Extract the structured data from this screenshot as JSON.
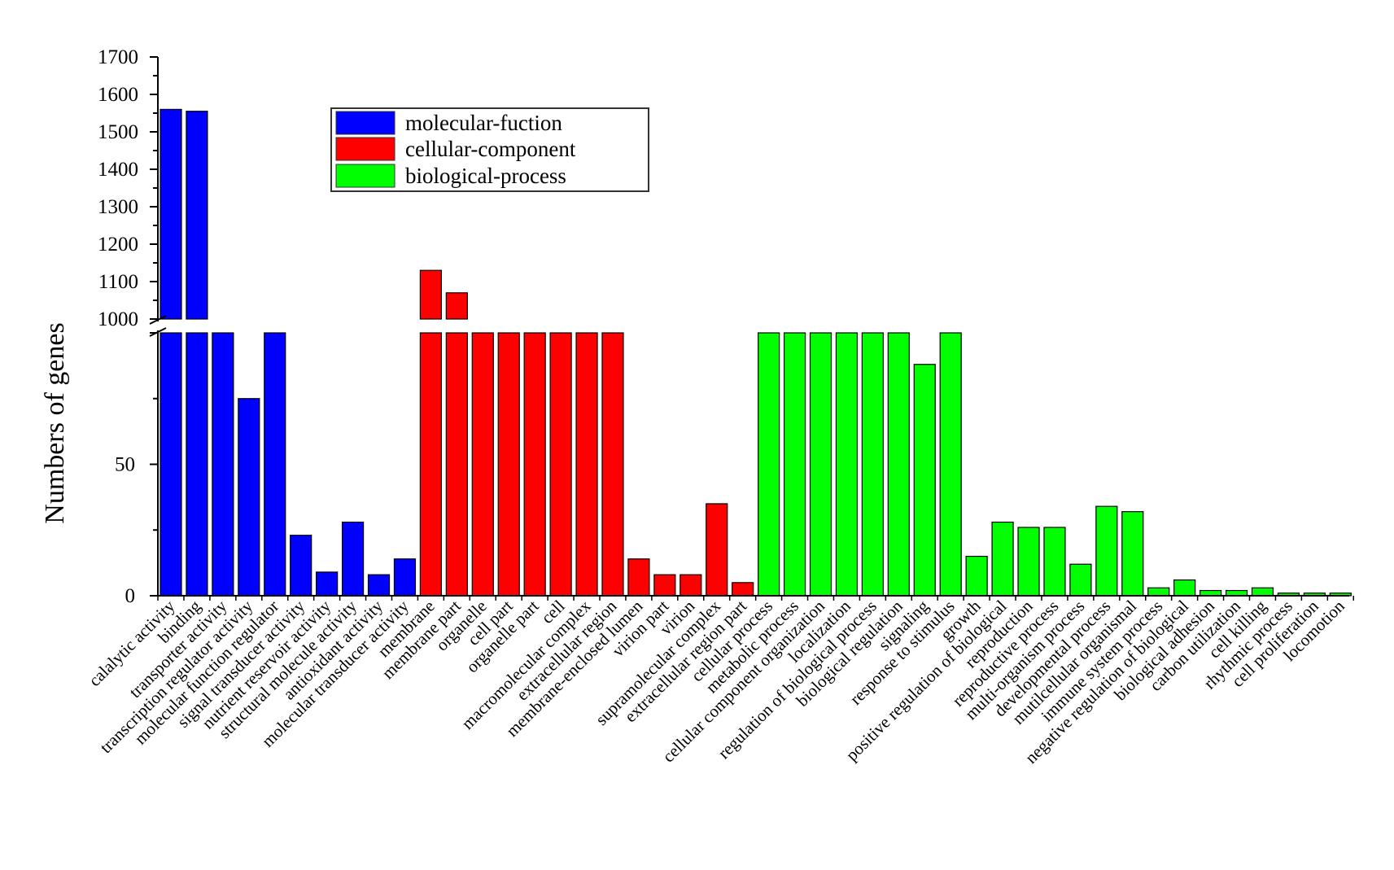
{
  "chart_data": {
    "type": "bar",
    "title": "",
    "xlabel": "",
    "ylabel": "Numbers of genes",
    "axis_break": true,
    "lower_range": [
      0,
      100
    ],
    "upper_range": [
      1000,
      1700
    ],
    "lower_ticks": [
      0,
      50
    ],
    "upper_ticks": [
      1000,
      1100,
      1200,
      1300,
      1400,
      1500,
      1600,
      1700
    ],
    "grid": false,
    "legend_position": "top-center",
    "series": [
      {
        "name": "molecular-fuction",
        "color": "#0000ff"
      },
      {
        "name": "cellular-component",
        "color": "#ff0000"
      },
      {
        "name": "biological-process",
        "color": "#00ff00"
      }
    ],
    "bars": [
      {
        "category": "calalytic activity",
        "series": "molecular-fuction",
        "value": 1560
      },
      {
        "category": "binding",
        "series": "molecular-fuction",
        "value": 1555
      },
      {
        "category": "transporter activity",
        "series": "molecular-fuction",
        "value": 100
      },
      {
        "category": "transcription regulator activity",
        "series": "molecular-fuction",
        "value": 75
      },
      {
        "category": "molecular function regulator",
        "series": "molecular-fuction",
        "value": 100
      },
      {
        "category": "signal transducer activity",
        "series": "molecular-fuction",
        "value": 23
      },
      {
        "category": "nutrient reservoir activity",
        "series": "molecular-fuction",
        "value": 9
      },
      {
        "category": "structural molecule activity",
        "series": "molecular-fuction",
        "value": 28
      },
      {
        "category": "antioxidant activity",
        "series": "molecular-fuction",
        "value": 8
      },
      {
        "category": "molecular transducer activity",
        "series": "molecular-fuction",
        "value": 14
      },
      {
        "category": "membrane",
        "series": "cellular-component",
        "value": 1130
      },
      {
        "category": "membrane part",
        "series": "cellular-component",
        "value": 1070
      },
      {
        "category": "organelle",
        "series": "cellular-component",
        "value": 100
      },
      {
        "category": "cell part",
        "series": "cellular-component",
        "value": 100
      },
      {
        "category": "organelle part",
        "series": "cellular-component",
        "value": 100
      },
      {
        "category": "cell",
        "series": "cellular-component",
        "value": 100
      },
      {
        "category": "macromolecular complex",
        "series": "cellular-component",
        "value": 100
      },
      {
        "category": "extracellular region",
        "series": "cellular-component",
        "value": 100
      },
      {
        "category": "membrane-enclosed lumen",
        "series": "cellular-component",
        "value": 14
      },
      {
        "category": "virion part",
        "series": "cellular-component",
        "value": 8
      },
      {
        "category": "virion",
        "series": "cellular-component",
        "value": 8
      },
      {
        "category": "supramolecular complex",
        "series": "cellular-component",
        "value": 35
      },
      {
        "category": "extracellular region part",
        "series": "cellular-component",
        "value": 5
      },
      {
        "category": "cellular process",
        "series": "biological-process",
        "value": 100
      },
      {
        "category": "metabolic process",
        "series": "biological-process",
        "value": 100
      },
      {
        "category": "cellular component organization",
        "series": "biological-process",
        "value": 100
      },
      {
        "category": "localization",
        "series": "biological-process",
        "value": 100
      },
      {
        "category": "regulation of biological process",
        "series": "biological-process",
        "value": 100
      },
      {
        "category": "biological regulation",
        "series": "biological-process",
        "value": 100
      },
      {
        "category": "signaling",
        "series": "biological-process",
        "value": 88
      },
      {
        "category": "response to stimulus",
        "series": "biological-process",
        "value": 100
      },
      {
        "category": "growth",
        "series": "biological-process",
        "value": 15
      },
      {
        "category": "positive regulation of biological",
        "series": "biological-process",
        "value": 28
      },
      {
        "category": "reproduction",
        "series": "biological-process",
        "value": 26
      },
      {
        "category": "reproductive process",
        "series": "biological-process",
        "value": 26
      },
      {
        "category": "multi-organism process",
        "series": "biological-process",
        "value": 12
      },
      {
        "category": "developmental process",
        "series": "biological-process",
        "value": 34
      },
      {
        "category": "mutilcellular organismal",
        "series": "biological-process",
        "value": 32
      },
      {
        "category": "immune system process",
        "series": "biological-process",
        "value": 3
      },
      {
        "category": "negative regulation of biological",
        "series": "biological-process",
        "value": 6
      },
      {
        "category": "biological adhesion",
        "series": "biological-process",
        "value": 2
      },
      {
        "category": "carbon utilization",
        "series": "biological-process",
        "value": 2
      },
      {
        "category": "cell killing",
        "series": "biological-process",
        "value": 3
      },
      {
        "category": "rhythmic process",
        "series": "biological-process",
        "value": 1
      },
      {
        "category": "cell proliferation",
        "series": "biological-process",
        "value": 1
      },
      {
        "category": "locomotion",
        "series": "biological-process",
        "value": 1
      }
    ]
  }
}
